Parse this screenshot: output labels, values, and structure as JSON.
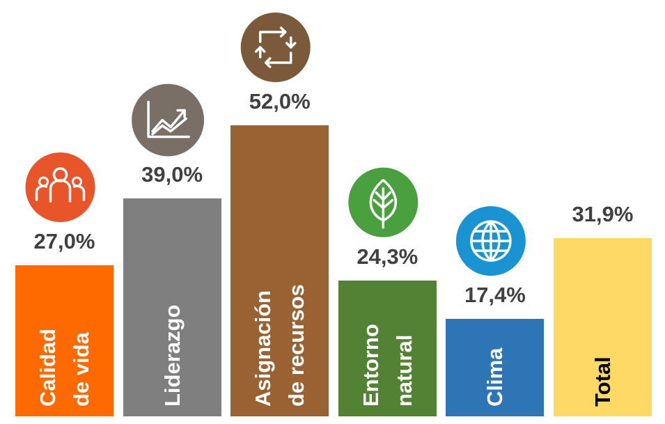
{
  "chart_data": {
    "type": "bar",
    "categories": [
      "Calidad\nde vida",
      "Liderazgo",
      "Asignación\nde recursos",
      "Entorno\nnatural",
      "Clima",
      "Total"
    ],
    "values": [
      27.0,
      39.0,
      52.0,
      24.3,
      17.4,
      31.9
    ],
    "value_labels": [
      "27,0%",
      "39,0%",
      "52,0%",
      "24,3%",
      "17,4%",
      "31,9%"
    ],
    "colors": [
      "#ff6a00",
      "#7f7f7f",
      "#9a6232",
      "#548235",
      "#2e75b6",
      "#ffd966"
    ],
    "text_colors": [
      "#ffffff",
      "#ffffff",
      "#ffffff",
      "#ffffff",
      "#ffffff",
      "#000000"
    ]
  }
}
